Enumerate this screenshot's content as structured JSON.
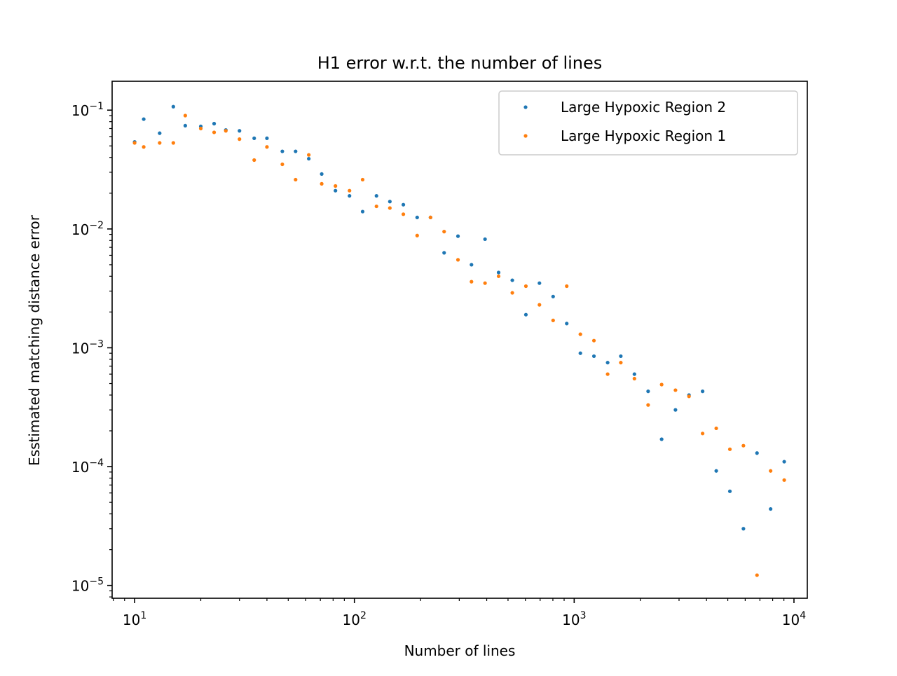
{
  "chart_data": {
    "type": "scatter",
    "title": "H1 error w.r.t. the number of lines",
    "xlabel": "Number of lines",
    "ylabel": "Esstimated matching distance error",
    "xscale": "log",
    "yscale": "log",
    "xlim": [
      7.9,
      11500
    ],
    "ylim": [
      7.8e-06,
      0.175
    ],
    "x_ticks": [
      {
        "value": 10,
        "base": "10",
        "exp": "1"
      },
      {
        "value": 100,
        "base": "10",
        "exp": "2"
      },
      {
        "value": 1000,
        "base": "10",
        "exp": "3"
      },
      {
        "value": 10000,
        "base": "10",
        "exp": "4"
      }
    ],
    "y_ticks": [
      {
        "value": 0.1,
        "base": "10",
        "exp": "−1"
      },
      {
        "value": 0.01,
        "base": "10",
        "exp": "−2"
      },
      {
        "value": 0.001,
        "base": "10",
        "exp": "−3"
      },
      {
        "value": 0.0001,
        "base": "10",
        "exp": "−4"
      },
      {
        "value": 1e-05,
        "base": "10",
        "exp": "−5"
      }
    ],
    "grid": false,
    "legend_position": "top-right",
    "series": [
      {
        "name": "Large Hypoxic Region 2",
        "color": "#1f77b4",
        "points": [
          [
            10,
            0.054
          ],
          [
            11,
            0.084
          ],
          [
            13,
            0.064
          ],
          [
            15,
            0.107
          ],
          [
            17,
            0.074
          ],
          [
            20,
            0.073
          ],
          [
            23,
            0.077
          ],
          [
            26,
            0.068
          ],
          [
            30,
            0.067
          ],
          [
            35,
            0.058
          ],
          [
            40,
            0.058
          ],
          [
            47,
            0.045
          ],
          [
            54,
            0.045
          ],
          [
            62,
            0.039
          ],
          [
            71,
            0.029
          ],
          [
            82,
            0.021
          ],
          [
            95,
            0.019
          ],
          [
            109,
            0.014
          ],
          [
            126,
            0.019
          ],
          [
            145,
            0.017
          ],
          [
            167,
            0.016
          ],
          [
            193,
            0.0125
          ],
          [
            222,
            0.0125
          ],
          [
            256,
            0.0063
          ],
          [
            296,
            0.0087
          ],
          [
            341,
            0.005
          ],
          [
            393,
            0.0082
          ],
          [
            453,
            0.0043
          ],
          [
            523,
            0.0037
          ],
          [
            603,
            0.0019
          ],
          [
            695,
            0.0035
          ],
          [
            802,
            0.0027
          ],
          [
            925,
            0.0016
          ],
          [
            1067,
            0.0009
          ],
          [
            1230,
            0.00085
          ],
          [
            1420,
            0.00075
          ],
          [
            1630,
            0.00085
          ],
          [
            1880,
            0.0006
          ],
          [
            2170,
            0.00043
          ],
          [
            2500,
            0.00017
          ],
          [
            2890,
            0.0003
          ],
          [
            3330,
            0.0004
          ],
          [
            3840,
            0.00043
          ],
          [
            4430,
            9.2e-05
          ],
          [
            5110,
            6.2e-05
          ],
          [
            5890,
            3e-05
          ],
          [
            6790,
            0.00013
          ],
          [
            7830,
            4.4e-05
          ],
          [
            9030,
            0.00011
          ]
        ]
      },
      {
        "name": "Large Hypoxic Region 1",
        "color": "#ff7f0e",
        "points": [
          [
            10,
            0.053
          ],
          [
            11,
            0.049
          ],
          [
            13,
            0.053
          ],
          [
            15,
            0.053
          ],
          [
            17,
            0.09
          ],
          [
            20,
            0.07
          ],
          [
            23,
            0.065
          ],
          [
            26,
            0.067
          ],
          [
            30,
            0.057
          ],
          [
            35,
            0.038
          ],
          [
            40,
            0.049
          ],
          [
            47,
            0.035
          ],
          [
            54,
            0.026
          ],
          [
            62,
            0.042
          ],
          [
            71,
            0.024
          ],
          [
            82,
            0.023
          ],
          [
            95,
            0.021
          ],
          [
            109,
            0.026
          ],
          [
            126,
            0.0155
          ],
          [
            145,
            0.015
          ],
          [
            167,
            0.0133
          ],
          [
            193,
            0.0088
          ],
          [
            222,
            0.0125
          ],
          [
            256,
            0.0095
          ],
          [
            296,
            0.0055
          ],
          [
            341,
            0.0036
          ],
          [
            393,
            0.0035
          ],
          [
            453,
            0.004
          ],
          [
            523,
            0.0029
          ],
          [
            603,
            0.0033
          ],
          [
            695,
            0.0023
          ],
          [
            802,
            0.0017
          ],
          [
            925,
            0.0033
          ],
          [
            1067,
            0.0013
          ],
          [
            1230,
            0.00115
          ],
          [
            1420,
            0.0006
          ],
          [
            1630,
            0.00075
          ],
          [
            1880,
            0.00055
          ],
          [
            2170,
            0.00033
          ],
          [
            2500,
            0.00049
          ],
          [
            2890,
            0.00044
          ],
          [
            3330,
            0.00039
          ],
          [
            3840,
            0.00019
          ],
          [
            4430,
            0.00021
          ],
          [
            5110,
            0.00014
          ],
          [
            5890,
            0.00015
          ],
          [
            6790,
            1.22e-05
          ],
          [
            7830,
            9.2e-05
          ],
          [
            9030,
            7.7e-05
          ]
        ]
      }
    ],
    "legend_order": [
      0,
      1
    ]
  }
}
